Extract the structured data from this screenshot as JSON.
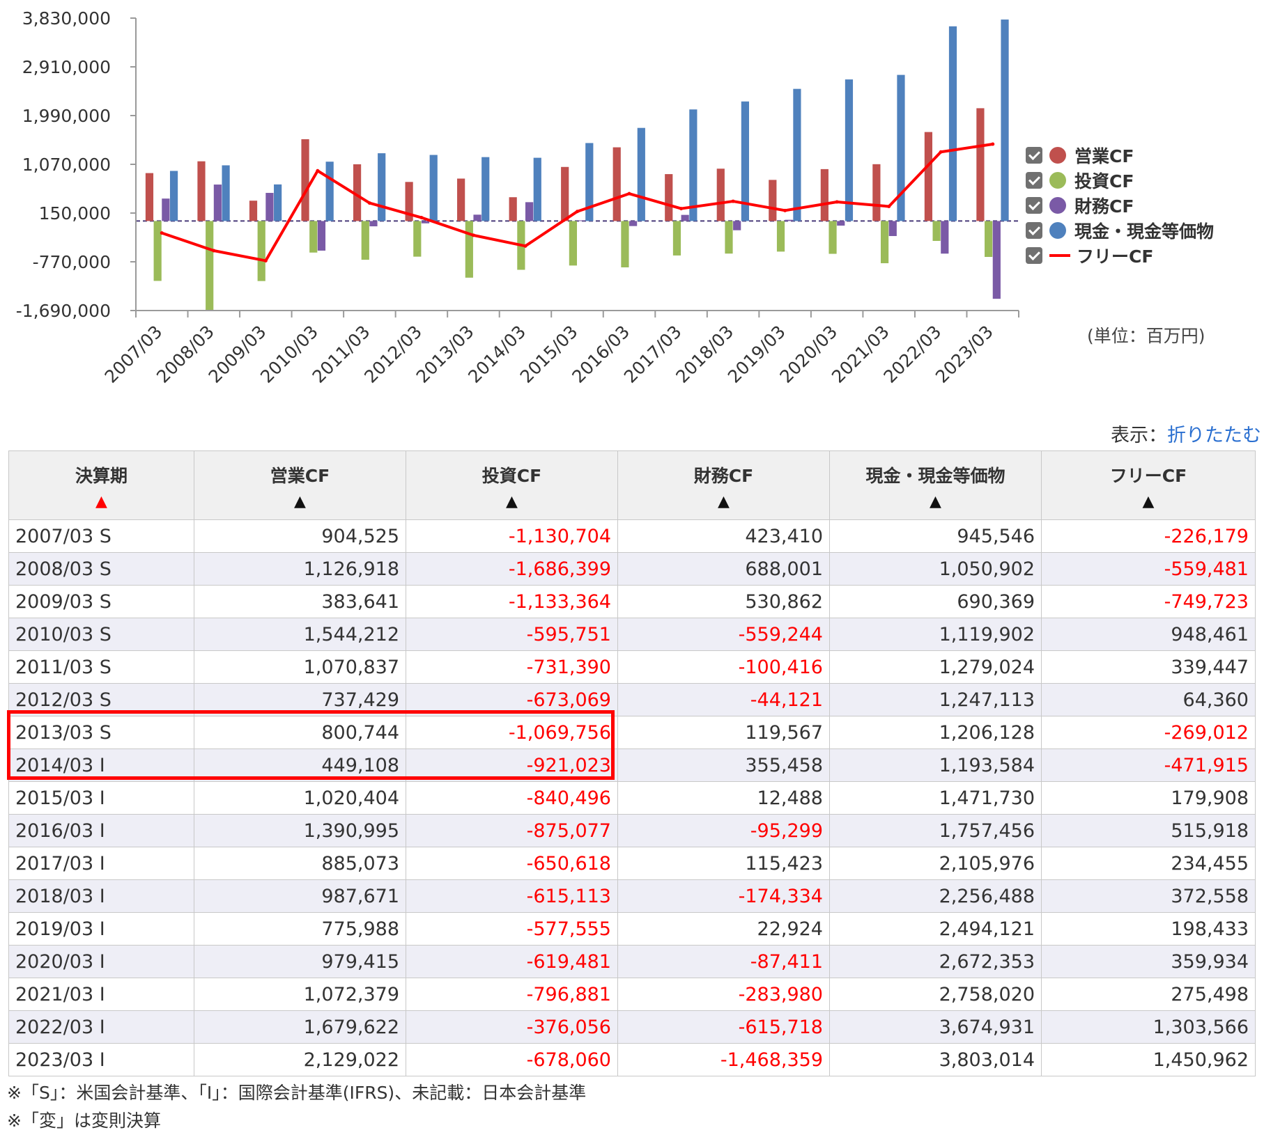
{
  "chart_data": {
    "type": "bar",
    "categories": [
      "2007/03",
      "2008/03",
      "2009/03",
      "2010/03",
      "2011/03",
      "2012/03",
      "2013/03",
      "2014/03",
      "2015/03",
      "2016/03",
      "2017/03",
      "2018/03",
      "2019/03",
      "2020/03",
      "2021/03",
      "2022/03",
      "2023/03"
    ],
    "series": [
      {
        "name": "営業CF",
        "color": "#c0504d",
        "kind": "bar",
        "values": [
          904525,
          1126918,
          383641,
          1544212,
          1070837,
          737429,
          800744,
          449108,
          1020404,
          1390995,
          885073,
          987671,
          775988,
          979415,
          1072379,
          1679622,
          2129022
        ]
      },
      {
        "name": "投資CF",
        "color": "#9bbb59",
        "kind": "bar",
        "values": [
          -1130704,
          -1686399,
          -1133364,
          -595751,
          -731390,
          -673069,
          -1069756,
          -921023,
          -840496,
          -875077,
          -650618,
          -615113,
          -577555,
          -619481,
          -796881,
          -376056,
          -678060
        ]
      },
      {
        "name": "財務CF",
        "color": "#7a5aa6",
        "kind": "bar",
        "values": [
          423410,
          688001,
          530862,
          -559244,
          -100416,
          -44121,
          119567,
          355458,
          12488,
          -95299,
          115423,
          -174334,
          22924,
          -87411,
          -283980,
          -615718,
          -1468359
        ]
      },
      {
        "name": "現金・現金等価物",
        "color": "#4f81bd",
        "kind": "bar",
        "values": [
          945546,
          1050902,
          690369,
          1119902,
          1279024,
          1247113,
          1206128,
          1193584,
          1471730,
          1757456,
          2105976,
          2256488,
          2494121,
          2672353,
          2758020,
          3674931,
          3803014
        ]
      },
      {
        "name": "フリーCF",
        "color": "#ff0000",
        "kind": "line",
        "values": [
          -226179,
          -559481,
          -749723,
          948461,
          339447,
          64360,
          -269012,
          -471915,
          179908,
          515918,
          234455,
          372558,
          198433,
          359934,
          275498,
          1303566,
          1450962
        ]
      }
    ],
    "yticks": [
      3830000,
      2910000,
      1990000,
      1070000,
      150000,
      -770000,
      -1690000
    ],
    "ytick_labels": [
      "3,830,000",
      "2,910,000",
      "1,990,000",
      "1,070,000",
      "150,000",
      "-770,000",
      "-1,690,000"
    ],
    "ylim": [
      -1690000,
      3830000
    ],
    "legend_position": "right",
    "unit_label": "(単位：百万円)"
  },
  "toggle": {
    "prefix": "表示：",
    "link": "折りたたむ"
  },
  "table": {
    "headers": [
      {
        "label": "決算期",
        "sort": "▲",
        "active": true
      },
      {
        "label": "営業CF",
        "sort": "▲",
        "active": false
      },
      {
        "label": "投資CF",
        "sort": "▲",
        "active": false
      },
      {
        "label": "財務CF",
        "sort": "▲",
        "active": false
      },
      {
        "label": "現金・現金等価物",
        "sort": "▲",
        "active": false
      },
      {
        "label": "フリーCF",
        "sort": "▲",
        "active": false
      }
    ],
    "rows": [
      [
        "2007/03 S",
        "904,525",
        "-1,130,704",
        "423,410",
        "945,546",
        "-226,179"
      ],
      [
        "2008/03 S",
        "1,126,918",
        "-1,686,399",
        "688,001",
        "1,050,902",
        "-559,481"
      ],
      [
        "2009/03 S",
        "383,641",
        "-1,133,364",
        "530,862",
        "690,369",
        "-749,723"
      ],
      [
        "2010/03 S",
        "1,544,212",
        "-595,751",
        "-559,244",
        "1,119,902",
        "948,461"
      ],
      [
        "2011/03 S",
        "1,070,837",
        "-731,390",
        "-100,416",
        "1,279,024",
        "339,447"
      ],
      [
        "2012/03 S",
        "737,429",
        "-673,069",
        "-44,121",
        "1,247,113",
        "64,360"
      ],
      [
        "2013/03 S",
        "800,744",
        "-1,069,756",
        "119,567",
        "1,206,128",
        "-269,012"
      ],
      [
        "2014/03 I",
        "449,108",
        "-921,023",
        "355,458",
        "1,193,584",
        "-471,915"
      ],
      [
        "2015/03 I",
        "1,020,404",
        "-840,496",
        "12,488",
        "1,471,730",
        "179,908"
      ],
      [
        "2016/03 I",
        "1,390,995",
        "-875,077",
        "-95,299",
        "1,757,456",
        "515,918"
      ],
      [
        "2017/03 I",
        "885,073",
        "-650,618",
        "115,423",
        "2,105,976",
        "234,455"
      ],
      [
        "2018/03 I",
        "987,671",
        "-615,113",
        "-174,334",
        "2,256,488",
        "372,558"
      ],
      [
        "2019/03 I",
        "775,988",
        "-577,555",
        "22,924",
        "2,494,121",
        "198,433"
      ],
      [
        "2020/03 I",
        "979,415",
        "-619,481",
        "-87,411",
        "2,672,353",
        "359,934"
      ],
      [
        "2021/03 I",
        "1,072,379",
        "-796,881",
        "-283,980",
        "2,758,020",
        "275,498"
      ],
      [
        "2022/03 I",
        "1,679,622",
        "-376,056",
        "-615,718",
        "3,674,931",
        "1,303,566"
      ],
      [
        "2023/03 I",
        "2,129,022",
        "-678,060",
        "-1,468,359",
        "3,803,014",
        "1,450,962"
      ]
    ]
  },
  "notes": [
    "※「S」：米国会計基準、「I」：国際会計基準(IFRS)、未記載：日本会計基準",
    "※「変」は変則決算"
  ]
}
